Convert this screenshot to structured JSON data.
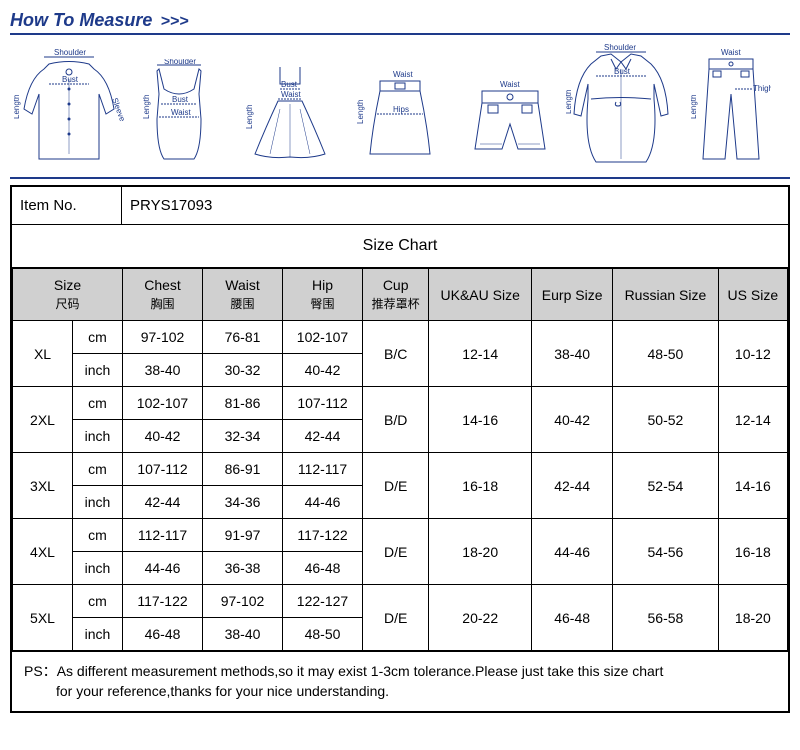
{
  "header": {
    "title": "How To Measure",
    "arrows": ">>>"
  },
  "diagram_labels": {
    "shoulder": "Shoulder",
    "bust": "Bust",
    "length": "Length",
    "sleeve": "Sleeve",
    "waist": "Waist",
    "hips": "Hips",
    "thigh": "Thigh"
  },
  "item": {
    "label": "Item No.",
    "value": "PRYS17093"
  },
  "chart_title": "Size Chart",
  "columns": {
    "size": {
      "en": "Size",
      "cn": "尺码"
    },
    "chest": {
      "en": "Chest",
      "cn": "胸围"
    },
    "waist": {
      "en": "Waist",
      "cn": "腰围"
    },
    "hip": {
      "en": "Hip",
      "cn": "臀围"
    },
    "cup": {
      "en": "Cup",
      "cn": "推荐罩杯"
    },
    "ukau": "UK&AU Size",
    "eurp": "Eurp Size",
    "russian": "Russian Size",
    "us": "US Size"
  },
  "units": {
    "cm": "cm",
    "inch": "inch"
  },
  "rows": [
    {
      "size": "XL",
      "cm": {
        "chest": "97-102",
        "waist": "76-81",
        "hip": "102-107"
      },
      "inch": {
        "chest": "38-40",
        "waist": "30-32",
        "hip": "40-42"
      },
      "cup": "B/C",
      "ukau": "12-14",
      "eurp": "38-40",
      "russian": "48-50",
      "us": "10-12"
    },
    {
      "size": "2XL",
      "cm": {
        "chest": "102-107",
        "waist": "81-86",
        "hip": "107-112"
      },
      "inch": {
        "chest": "40-42",
        "waist": "32-34",
        "hip": "42-44"
      },
      "cup": "B/D",
      "ukau": "14-16",
      "eurp": "40-42",
      "russian": "50-52",
      "us": "12-14"
    },
    {
      "size": "3XL",
      "cm": {
        "chest": "107-112",
        "waist": "86-91",
        "hip": "112-117"
      },
      "inch": {
        "chest": "42-44",
        "waist": "34-36",
        "hip": "44-46"
      },
      "cup": "D/E",
      "ukau": "16-18",
      "eurp": "42-44",
      "russian": "52-54",
      "us": "14-16"
    },
    {
      "size": "4XL",
      "cm": {
        "chest": "112-117",
        "waist": "91-97",
        "hip": "117-122"
      },
      "inch": {
        "chest": "44-46",
        "waist": "36-38",
        "hip": "46-48"
      },
      "cup": "D/E",
      "ukau": "18-20",
      "eurp": "44-46",
      "russian": "54-56",
      "us": "16-18"
    },
    {
      "size": "5XL",
      "cm": {
        "chest": "117-122",
        "waist": "97-102",
        "hip": "122-127"
      },
      "inch": {
        "chest": "46-48",
        "waist": "38-40",
        "hip": "48-50"
      },
      "cup": "D/E",
      "ukau": "20-22",
      "eurp": "46-48",
      "russian": "56-58",
      "us": "18-20"
    }
  ],
  "footer": {
    "prefix": "PS：",
    "line1": "As different measurement methods,so it may exist 1-3cm tolerance.Please just take this size chart",
    "line2": "for your reference,thanks for your nice understanding."
  },
  "colors": {
    "primary": "#1e3a8a",
    "header_bg": "#d0d0d0",
    "border": "#000000"
  }
}
